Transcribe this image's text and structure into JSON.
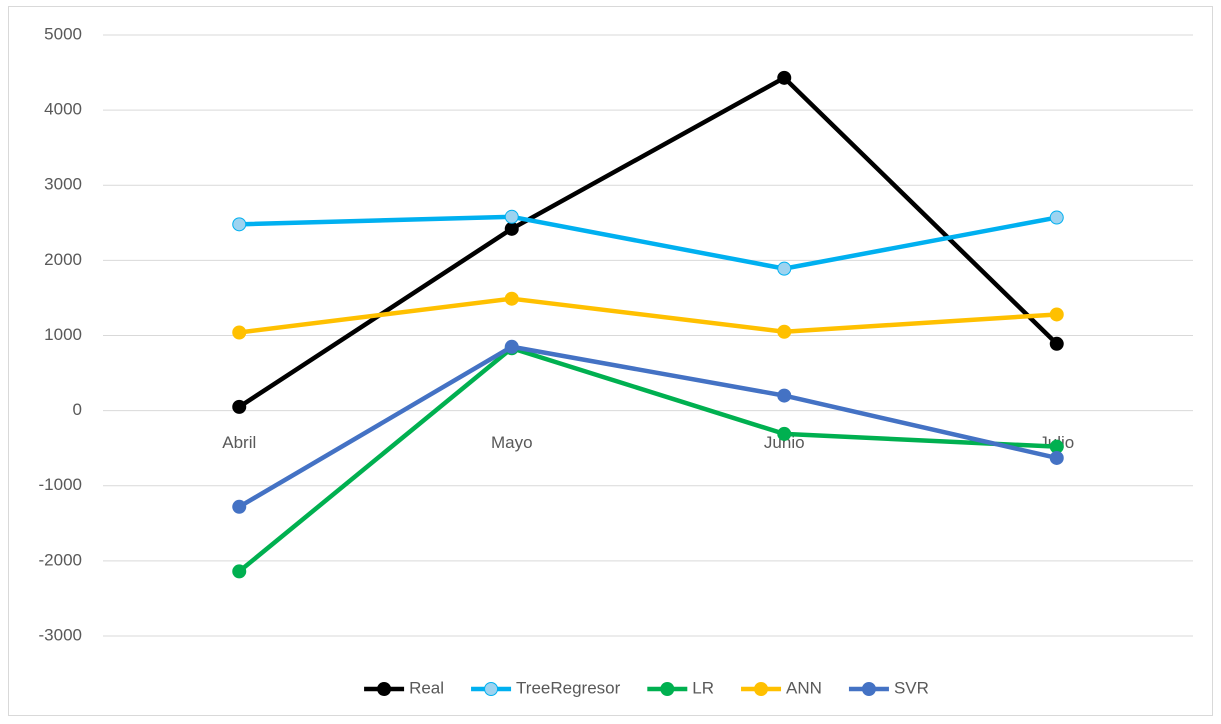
{
  "chart_data": {
    "type": "line",
    "categories": [
      "Abril",
      "Mayo",
      "Junio",
      "Julio"
    ],
    "series": [
      {
        "name": "Real",
        "color": "#000000",
        "marker_color": "#000000",
        "values": [
          50,
          2420,
          4430,
          890
        ]
      },
      {
        "name": "TreeRegresor",
        "color": "#00b0f0",
        "marker_color": "#9dd3f0",
        "values": [
          2480,
          2580,
          1890,
          2570
        ]
      },
      {
        "name": "LR",
        "color": "#00b050",
        "marker_color": "#00b050",
        "values": [
          -2140,
          830,
          -310,
          -480
        ]
      },
      {
        "name": "ANN",
        "color": "#ffc000",
        "marker_color": "#ffc000",
        "values": [
          1040,
          1490,
          1050,
          1280
        ]
      },
      {
        "name": "SVR",
        "color": "#4472c4",
        "marker_color": "#4472c4",
        "values": [
          -1280,
          850,
          200,
          -630
        ]
      }
    ],
    "ylim": [
      -3000,
      5000
    ],
    "yticks": [
      -3000,
      -2000,
      -1000,
      0,
      1000,
      2000,
      3000,
      4000,
      5000
    ],
    "grid": true,
    "legend": "bottom"
  }
}
